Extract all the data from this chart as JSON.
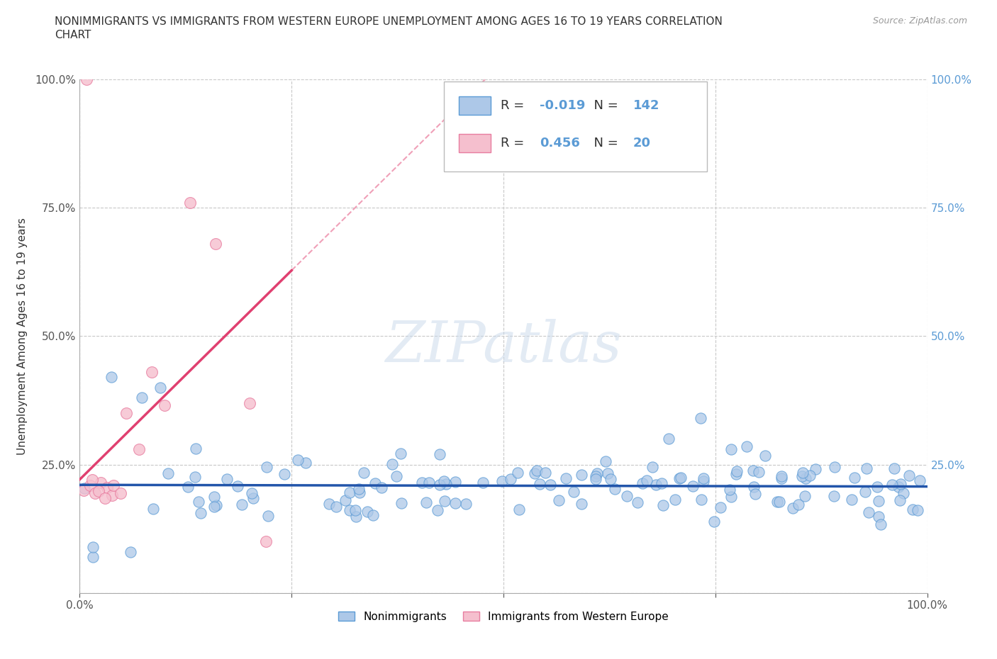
{
  "title_line1": "NONIMMIGRANTS VS IMMIGRANTS FROM WESTERN EUROPE UNEMPLOYMENT AMONG AGES 16 TO 19 YEARS CORRELATION",
  "title_line2": "CHART",
  "source": "Source: ZipAtlas.com",
  "ylabel": "Unemployment Among Ages 16 to 19 years",
  "xlim": [
    0.0,
    1.0
  ],
  "ylim": [
    0.0,
    1.0
  ],
  "x_ticks": [
    0.0,
    0.25,
    0.5,
    0.75,
    1.0
  ],
  "x_tick_labels": [
    "0.0%",
    "",
    "",
    "",
    "100.0%"
  ],
  "y_ticks": [
    0.0,
    0.25,
    0.5,
    0.75,
    1.0
  ],
  "y_tick_labels": [
    "",
    "25.0%",
    "50.0%",
    "75.0%",
    "100.0%"
  ],
  "y_tick_right_labels": [
    "",
    "25.0%",
    "50.0%",
    "75.0%",
    "100.0%"
  ],
  "nonimm_color": "#adc8e8",
  "nonimm_edge_color": "#5b9bd5",
  "imm_color": "#f5bfce",
  "imm_edge_color": "#e87da0",
  "nonimm_line_color": "#2255aa",
  "imm_line_color": "#e04070",
  "imm_dash_color": "#f0a0b8",
  "grid_color": "#c8c8c8",
  "background_color": "#ffffff",
  "R_nonimm": -0.019,
  "N_nonimm": 142,
  "R_imm": 0.456,
  "N_imm": 20,
  "watermark": "ZIPatlas",
  "legend_label_nonimm": "Nonimmigrants",
  "legend_label_imm": "Immigrants from Western Europe",
  "imm_x": [
    0.005,
    0.012,
    0.018,
    0.025,
    0.032,
    0.038,
    0.015,
    0.022,
    0.008,
    0.03,
    0.055,
    0.07,
    0.085,
    0.1,
    0.13,
    0.16,
    0.2,
    0.22,
    0.04,
    0.048
  ],
  "imm_y": [
    0.2,
    0.21,
    0.195,
    0.215,
    0.205,
    0.19,
    0.22,
    0.198,
    1.0,
    0.185,
    0.35,
    0.28,
    0.43,
    0.365,
    0.76,
    0.68,
    0.37,
    0.1,
    0.21,
    0.195
  ]
}
